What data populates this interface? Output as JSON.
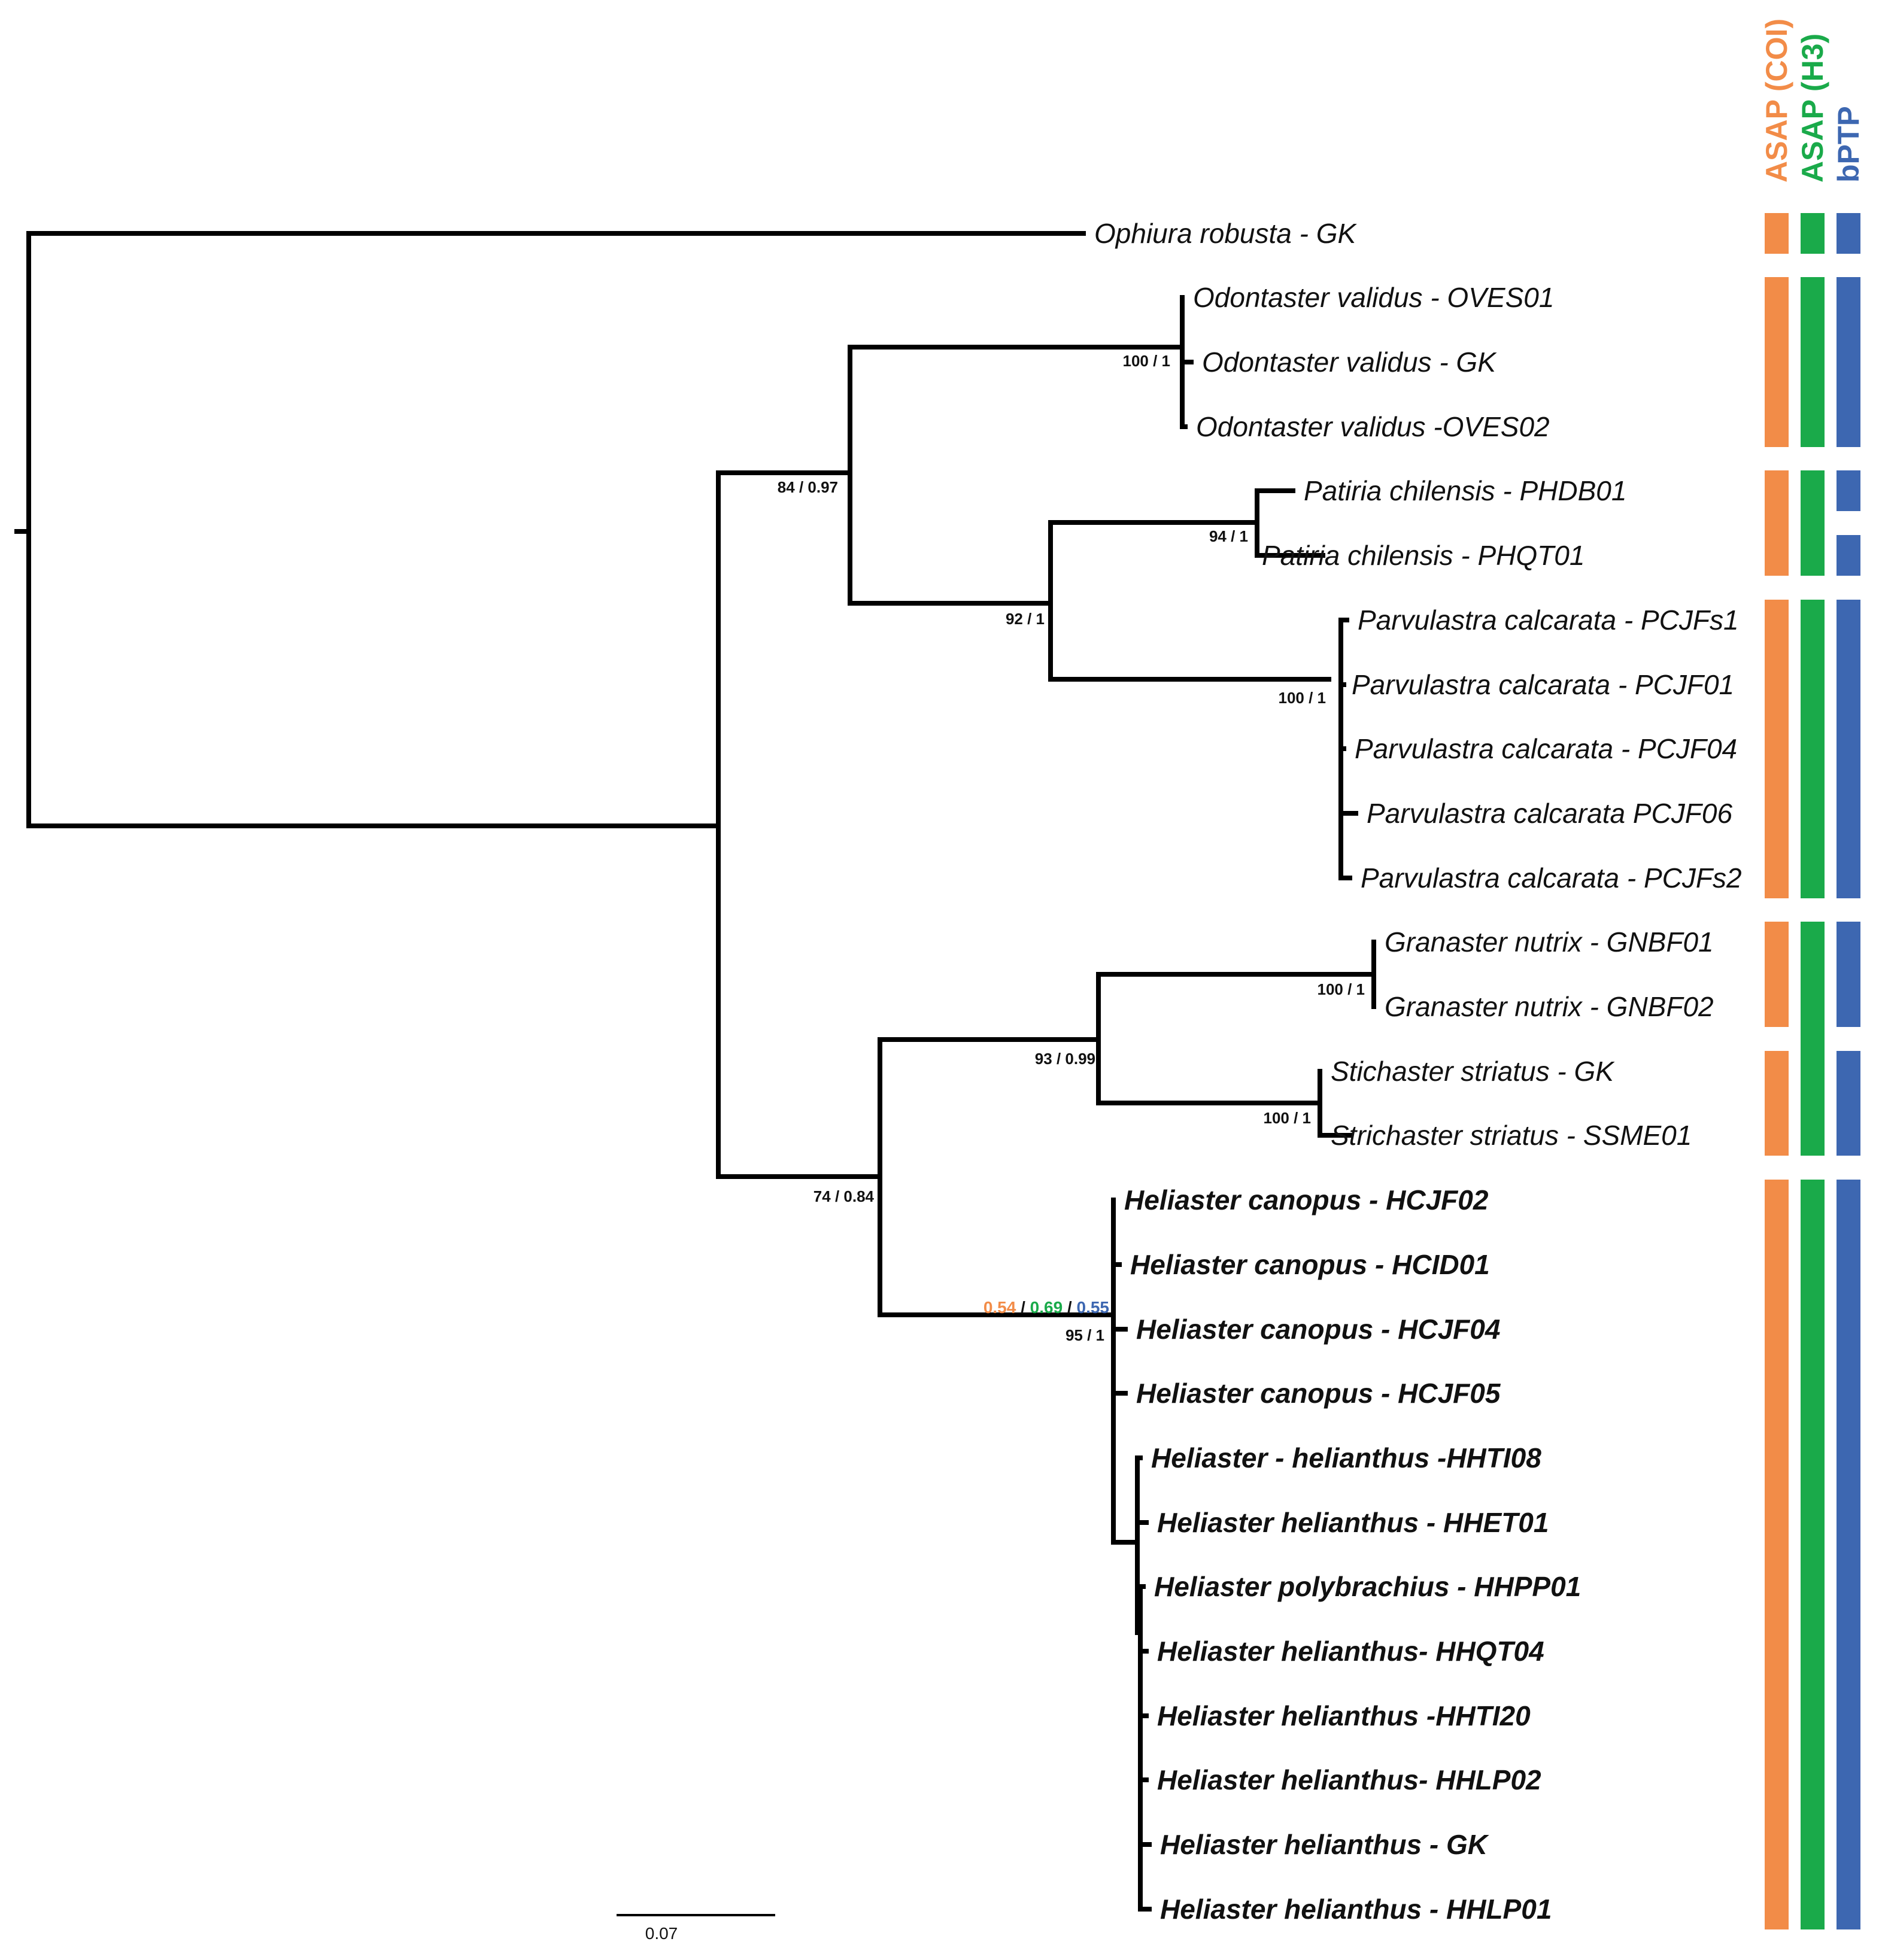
{
  "chart_data": {
    "type": "phylogenetic-tree",
    "scale_bar": {
      "label": "0.07",
      "length": 0.07
    },
    "methods": [
      {
        "key": "asap_coi",
        "label": "ASAP (COI)",
        "color": "#f28c48"
      },
      {
        "key": "asap_h3",
        "label": "ASAP (H3)",
        "color": "#1aaa4a"
      },
      {
        "key": "bptp",
        "label": "bPTP",
        "color": "#3d67b1"
      }
    ],
    "taxa": [
      {
        "id": "t1",
        "label": "Ophiura robusta - GK",
        "bold": false
      },
      {
        "id": "t2",
        "label": "Odontaster validus - OVES01",
        "bold": false
      },
      {
        "id": "t3",
        "label": "Odontaster validus - GK",
        "bold": false
      },
      {
        "id": "t4",
        "label": "Odontaster validus -OVES02",
        "bold": false
      },
      {
        "id": "t5",
        "label": "Patiria chilensis - PHDB01",
        "bold": false
      },
      {
        "id": "t6",
        "label": "Patiria chilensis - PHQT01",
        "bold": false
      },
      {
        "id": "t7",
        "label": "Parvulastra calcarata - PCJFs1",
        "bold": false
      },
      {
        "id": "t8",
        "label": "Parvulastra calcarata - PCJF01",
        "bold": false
      },
      {
        "id": "t9",
        "label": "Parvulastra calcarata - PCJF04",
        "bold": false
      },
      {
        "id": "t10",
        "label": "Parvulastra calcarata PCJF06",
        "bold": false
      },
      {
        "id": "t11",
        "label": "Parvulastra calcarata - PCJFs2",
        "bold": false
      },
      {
        "id": "t12",
        "label": "Granaster nutrix - GNBF01",
        "bold": false
      },
      {
        "id": "t13",
        "label": "Granaster nutrix - GNBF02",
        "bold": false
      },
      {
        "id": "t14",
        "label": "Stichaster striatus - GK",
        "bold": false
      },
      {
        "id": "t15",
        "label": "Strichaster striatus - SSME01",
        "bold": false
      },
      {
        "id": "t16",
        "label": "Heliaster canopus - HCJF02",
        "bold": true
      },
      {
        "id": "t17",
        "label": "Heliaster canopus - HCID01",
        "bold": true
      },
      {
        "id": "t18",
        "label": "Heliaster canopus - HCJF04",
        "bold": true
      },
      {
        "id": "t19",
        "label": "Heliaster canopus - HCJF05",
        "bold": true
      },
      {
        "id": "t20",
        "label": "Heliaster - helianthus -HHTI08",
        "bold": true
      },
      {
        "id": "t21",
        "label": "Heliaster helianthus - HHET01",
        "bold": true
      },
      {
        "id": "t22",
        "label": "Heliaster polybrachius - HHPP01",
        "bold": true
      },
      {
        "id": "t23",
        "label": "Heliaster helianthus- HHQT04",
        "bold": true
      },
      {
        "id": "t24",
        "label": "Heliaster helianthus -HHTI20",
        "bold": true
      },
      {
        "id": "t25",
        "label": "Heliaster helianthus- HHLP02",
        "bold": true
      },
      {
        "id": "t26",
        "label": "Heliaster helianthus - GK",
        "bold": true
      },
      {
        "id": "t27",
        "label": "Heliaster helianthus - HHLP01",
        "bold": true
      }
    ],
    "branch_supports": [
      {
        "id": "n_odontaster",
        "label": "100 / 1"
      },
      {
        "id": "n_odont_patiria",
        "label": "84 / 0.97"
      },
      {
        "id": "n_patiria",
        "label": "94 / 1"
      },
      {
        "id": "n_pat_parv",
        "label": "92 / 1"
      },
      {
        "id": "n_parvulastra",
        "label": "100 / 1"
      },
      {
        "id": "n_granaster",
        "label": "100 / 1"
      },
      {
        "id": "n_gran_stich",
        "label": "93 / 0.99"
      },
      {
        "id": "n_stichaster",
        "label": "100 / 1"
      },
      {
        "id": "n_forcipulatida",
        "label": "74 / 0.84"
      },
      {
        "id": "n_heliaster",
        "label": "95 / 1"
      }
    ],
    "heliaster_species_probabilities": [
      {
        "method": "asap_coi",
        "label": "0.54"
      },
      {
        "method": "asap_h3",
        "label": "0.69"
      },
      {
        "method": "bptp",
        "label": "0.55"
      }
    ],
    "probability_separator": "/",
    "delimitation_groups": {
      "asap_coi": [
        [
          "t1"
        ],
        [
          "t2",
          "t4"
        ],
        [
          "t5",
          "t6"
        ],
        [
          "t7",
          "t11"
        ],
        [
          "t12",
          "t13"
        ],
        [
          "t14",
          "t15"
        ],
        [
          "t16",
          "t27"
        ]
      ],
      "asap_h3": [
        [
          "t1"
        ],
        [
          "t2",
          "t4"
        ],
        [
          "t5",
          "t6"
        ],
        [
          "t7",
          "t11"
        ],
        [
          "t12",
          "t15"
        ],
        [
          "t16",
          "t27"
        ]
      ],
      "bptp": [
        [
          "t1"
        ],
        [
          "t2",
          "t4"
        ],
        [
          "t5"
        ],
        [
          "t6"
        ],
        [
          "t7",
          "t11"
        ],
        [
          "t12",
          "t13"
        ],
        [
          "t14",
          "t15"
        ],
        [
          "t16",
          "t27"
        ]
      ]
    }
  }
}
